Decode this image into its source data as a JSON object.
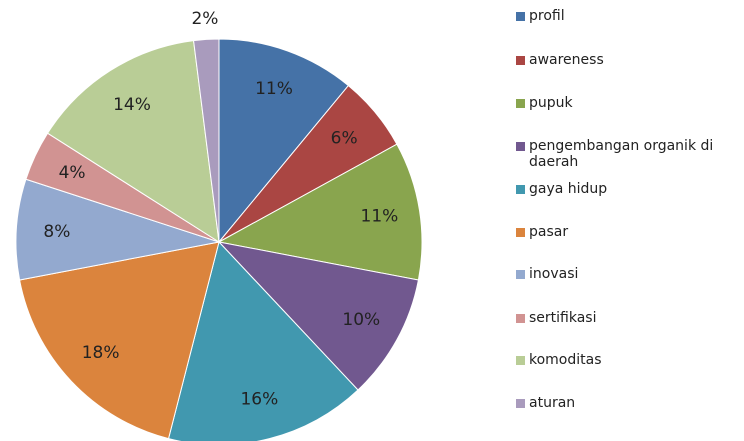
{
  "chart_data": {
    "type": "pie",
    "categories": [
      "profil",
      "awareness",
      "pupuk",
      "pengembangan organik di daerah",
      "gaya hidup",
      "pasar",
      "inovasi",
      "sertifikasi",
      "komoditas",
      "aturan"
    ],
    "values": [
      11,
      6,
      11,
      10,
      16,
      18,
      8,
      4,
      14,
      2
    ],
    "value_labels": [
      "11%",
      "6%",
      "11%",
      "10%",
      "16%",
      "18%",
      "8%",
      "4%",
      "14%",
      "2%"
    ],
    "colors": [
      "#4572a7",
      "#aa4643",
      "#89a54e",
      "#71588f",
      "#4198af",
      "#db843d",
      "#93a9cf",
      "#d19392",
      "#b9cd96",
      "#a99bbd"
    ],
    "legend": "right"
  }
}
